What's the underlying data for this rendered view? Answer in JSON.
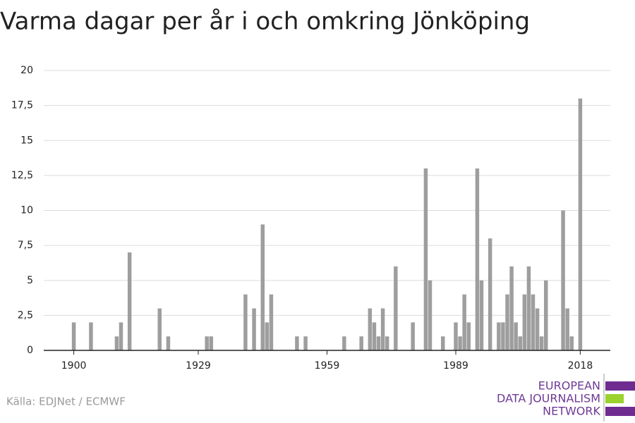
{
  "chart_data": {
    "type": "bar",
    "title": "Varma dagar per år i och omkring Jönköping",
    "source": "Källa: EDJNet / ECMWF",
    "logo": [
      "EUROPEAN",
      "DATA JOURNALISM",
      "NETWORK"
    ],
    "color": "#9e9e9e",
    "x": [
      1900,
      1904,
      1910,
      1911,
      1913,
      1920,
      1922,
      1931,
      1932,
      1940,
      1942,
      1944,
      1945,
      1946,
      1952,
      1954,
      1963,
      1967,
      1969,
      1970,
      1971,
      1972,
      1973,
      1975,
      1979,
      1982,
      1983,
      1986,
      1989,
      1990,
      1991,
      1992,
      1994,
      1995,
      1997,
      1999,
      2000,
      2001,
      2002,
      2003,
      2004,
      2005,
      2006,
      2007,
      2008,
      2009,
      2010,
      2014,
      2015,
      2016,
      2018
    ],
    "values": [
      2,
      2,
      1,
      2,
      7,
      3,
      1,
      1,
      1,
      4,
      3,
      9,
      2,
      4,
      1,
      1,
      1,
      1,
      3,
      2,
      1,
      3,
      1,
      6,
      2,
      13,
      5,
      1,
      2,
      1,
      4,
      2,
      13,
      5,
      8,
      2,
      2,
      4,
      6,
      2,
      1,
      4,
      6,
      4,
      3,
      1,
      5,
      10,
      3,
      1,
      18
    ],
    "xlim": [
      1893,
      2025
    ],
    "xticks": [
      1900,
      1929,
      1959,
      1989,
      2018
    ],
    "ylim": [
      0,
      20
    ],
    "yticks": [
      0,
      {
        "value": 2.5,
        "label": "2,5"
      },
      5,
      {
        "value": 7.5,
        "label": "7,5"
      },
      10,
      {
        "value": 12.5,
        "label": "12,5"
      },
      15,
      {
        "value": 17.5,
        "label": "17,5"
      },
      20
    ],
    "grid": true
  }
}
